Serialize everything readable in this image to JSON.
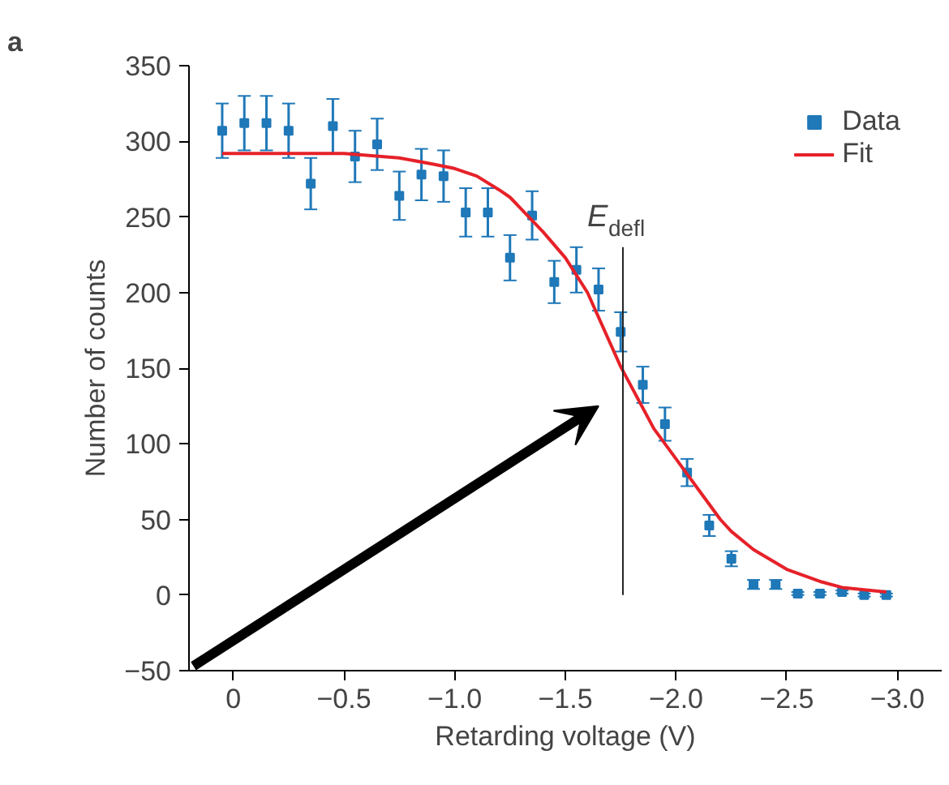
{
  "chart_data": {
    "type": "scatter",
    "title": "a",
    "xlabel": "Retarding voltage (V)",
    "ylabel": "Number of counts",
    "xlim": [
      0.2,
      -3.2
    ],
    "ylim": [
      -50,
      350
    ],
    "xticks": [
      0,
      {
        "value": -0.5,
        "label": "−0.5"
      },
      {
        "value": -1.0,
        "label": "−1.0"
      },
      {
        "value": -1.5,
        "label": "−1.5"
      },
      {
        "value": -2.0,
        "label": "−2.0"
      },
      {
        "value": -2.5,
        "label": "−2.5"
      },
      {
        "value": -3.0,
        "label": "−3.0"
      }
    ],
    "yticks": [
      {
        "value": -50,
        "label": "−50"
      },
      0,
      50,
      100,
      150,
      200,
      250,
      300,
      350
    ],
    "grid": false,
    "legend": "top right",
    "marker": "square",
    "ref_lines": [
      {
        "axis": "x",
        "value": -1.76,
        "label": "E$_{defl}$",
        "color": "#222222"
      }
    ],
    "series": [
      {
        "name": "Data",
        "color": "#1f78b8",
        "x": [
          0.05,
          -0.05,
          -0.15,
          -0.25,
          -0.35,
          -0.45,
          -0.55,
          -0.65,
          -0.75,
          -0.85,
          -0.95,
          -1.05,
          -1.15,
          -1.25,
          -1.35,
          -1.45,
          -1.55,
          -1.65,
          -1.75,
          -1.85,
          -1.95,
          -2.05,
          -2.15,
          -2.25,
          -2.35,
          -2.45,
          -2.55,
          -2.65,
          -2.75,
          -2.85,
          -2.95
        ],
        "values": [
          307,
          312,
          312,
          307,
          272,
          310,
          290,
          298,
          264,
          278,
          277,
          253,
          253,
          223,
          251,
          207,
          215,
          202,
          174,
          139,
          113,
          81,
          46,
          24,
          7,
          7,
          1,
          1,
          2,
          0,
          0
        ],
        "errors": [
          18,
          18,
          18,
          18,
          17,
          18,
          17,
          17,
          16,
          17,
          17,
          16,
          16,
          15,
          16,
          14,
          15,
          14,
          13,
          12,
          11,
          9,
          7,
          5,
          3,
          3,
          1,
          1,
          1,
          1,
          1
        ]
      },
      {
        "name": "Fit",
        "type": "line",
        "color": "#e62129",
        "marker": "none",
        "line_style": "solid",
        "x": [
          0.05,
          -0.5,
          -0.75,
          -0.9,
          -1.0,
          -1.1,
          -1.2,
          -1.25,
          -1.4,
          -1.5,
          -1.6,
          -1.75,
          -1.9,
          -2.0,
          -2.1,
          -2.2,
          -2.25,
          -2.35,
          -2.5,
          -2.65,
          -2.75,
          -2.95
        ],
        "values": [
          292,
          292,
          289,
          285,
          282,
          277,
          268,
          263,
          240,
          223,
          200,
          151,
          110,
          90,
          70,
          50,
          42,
          30,
          17,
          9,
          5,
          2
        ]
      }
    ]
  }
}
